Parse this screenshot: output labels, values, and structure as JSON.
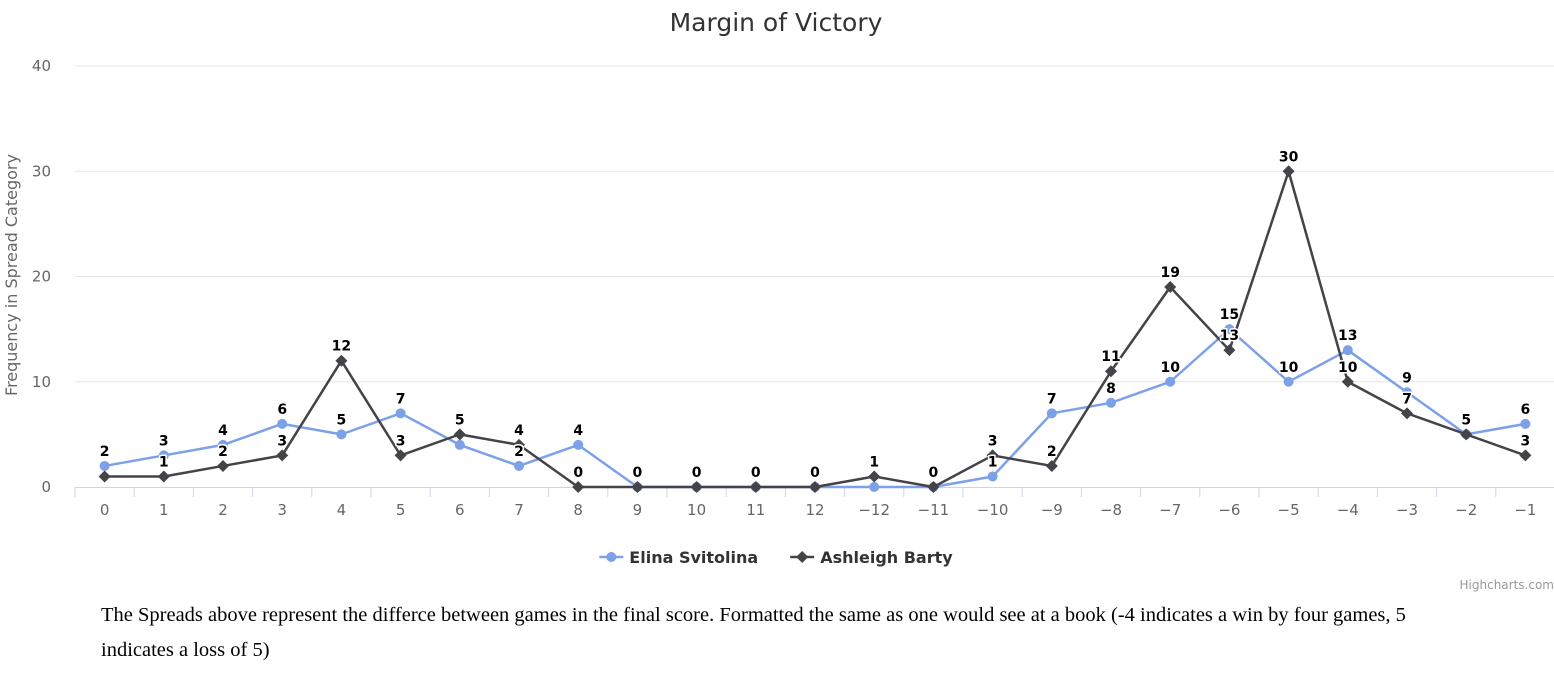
{
  "chart_data": {
    "type": "line",
    "title": "Margin of Victory",
    "xlabel": "",
    "ylabel": "Frequency in Spread Category",
    "ylim": [
      0,
      40
    ],
    "yticks": [
      0,
      10,
      20,
      30,
      40
    ],
    "categories": [
      "0",
      "1",
      "2",
      "3",
      "4",
      "5",
      "6",
      "7",
      "8",
      "9",
      "10",
      "11",
      "12",
      "−12",
      "−11",
      "−10",
      "−9",
      "−8",
      "−7",
      "−6",
      "−5",
      "−4",
      "−3",
      "−2",
      "−1"
    ],
    "series": [
      {
        "name": "Elina Svitolina",
        "color": "#7cA1E8",
        "marker": "circle",
        "values": [
          2,
          3,
          4,
          6,
          5,
          7,
          4,
          2,
          4,
          0,
          0,
          0,
          0,
          0,
          0,
          1,
          7,
          8,
          10,
          15,
          10,
          13,
          9,
          5,
          6
        ]
      },
      {
        "name": "Ashleigh Barty",
        "color": "#434348",
        "marker": "diamond",
        "values": [
          1,
          1,
          2,
          3,
          12,
          3,
          5,
          4,
          0,
          0,
          0,
          0,
          0,
          1,
          0,
          3,
          2,
          11,
          19,
          13,
          30,
          10,
          7,
          5,
          3
        ]
      }
    ],
    "data_labels_shown": {
      "Elina Svitolina": [
        true,
        true,
        true,
        true,
        true,
        true,
        false,
        true,
        true,
        false,
        false,
        false,
        false,
        false,
        false,
        true,
        true,
        true,
        true,
        true,
        true,
        true,
        true,
        false,
        true
      ],
      "Ashleigh Barty": [
        false,
        true,
        true,
        true,
        true,
        true,
        true,
        true,
        true,
        true,
        true,
        true,
        true,
        true,
        true,
        true,
        true,
        true,
        true,
        true,
        true,
        true,
        true,
        true,
        true
      ]
    },
    "legend_position": "bottom-center",
    "grid": true
  },
  "credits": "Highcharts.com",
  "caption": "The Spreads above represent the differce between games in the final score. Formatted the same as one would see at a book (-4 indicates a win by four games, 5 indicates a loss of 5)"
}
